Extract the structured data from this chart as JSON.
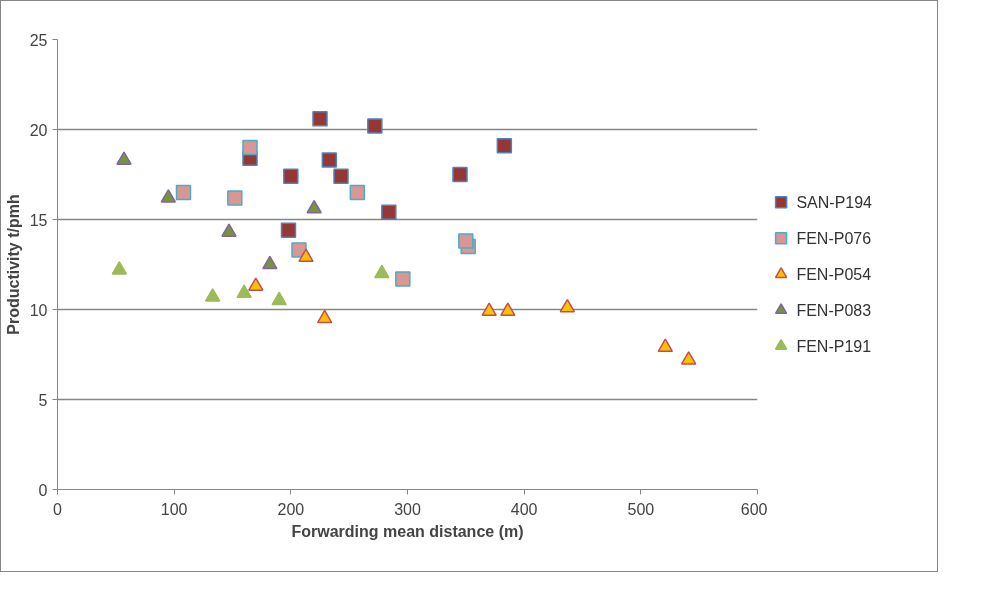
{
  "chart_data": {
    "type": "scatter",
    "xlabel": "Forwarding mean distance (m)",
    "ylabel": "Productivity t/pmh",
    "xlim": [
      0,
      600
    ],
    "xticks": [
      0,
      100,
      200,
      300,
      400,
      500,
      600
    ],
    "ylim": [
      0,
      25
    ],
    "yticks": [
      0,
      5,
      10,
      15,
      20,
      25
    ],
    "grid": "y",
    "legend": "right",
    "series": [
      {
        "name": "SAN-P194",
        "color": "#953735",
        "marker": "square",
        "x": [
          165,
          198,
          200,
          225,
          233,
          243,
          272,
          284,
          345,
          383
        ],
        "values": [
          18.4,
          14.4,
          17.4,
          20.6,
          18.3,
          17.4,
          20.2,
          15.4,
          17.5,
          19.1
        ]
      },
      {
        "name": "FEN-P076",
        "color": "#d99694",
        "marker": "square",
        "x": [
          108,
          152,
          165,
          207,
          257,
          296,
          352,
          350
        ],
        "values": [
          16.5,
          16.2,
          19.0,
          13.3,
          16.5,
          11.7,
          13.5,
          13.8
        ]
      },
      {
        "name": "FEN-P054",
        "color": "#ffc000",
        "marker": "triangle",
        "x": [
          170,
          213,
          229,
          370,
          386,
          437,
          521,
          541
        ],
        "values": [
          11.3,
          12.9,
          9.5,
          9.9,
          9.9,
          10.1,
          7.9,
          7.2
        ]
      },
      {
        "name": "FEN-P083",
        "color": "#77933c",
        "marker": "triangle",
        "x": [
          57,
          95,
          147,
          182,
          220
        ],
        "values": [
          18.3,
          16.2,
          14.3,
          12.5,
          15.6
        ]
      },
      {
        "name": "FEN-P191",
        "color": "#9bbb59",
        "marker": "triangle",
        "x": [
          53,
          133,
          160,
          190,
          278
        ],
        "values": [
          12.2,
          10.7,
          10.9,
          10.5,
          12.0
        ]
      }
    ]
  }
}
